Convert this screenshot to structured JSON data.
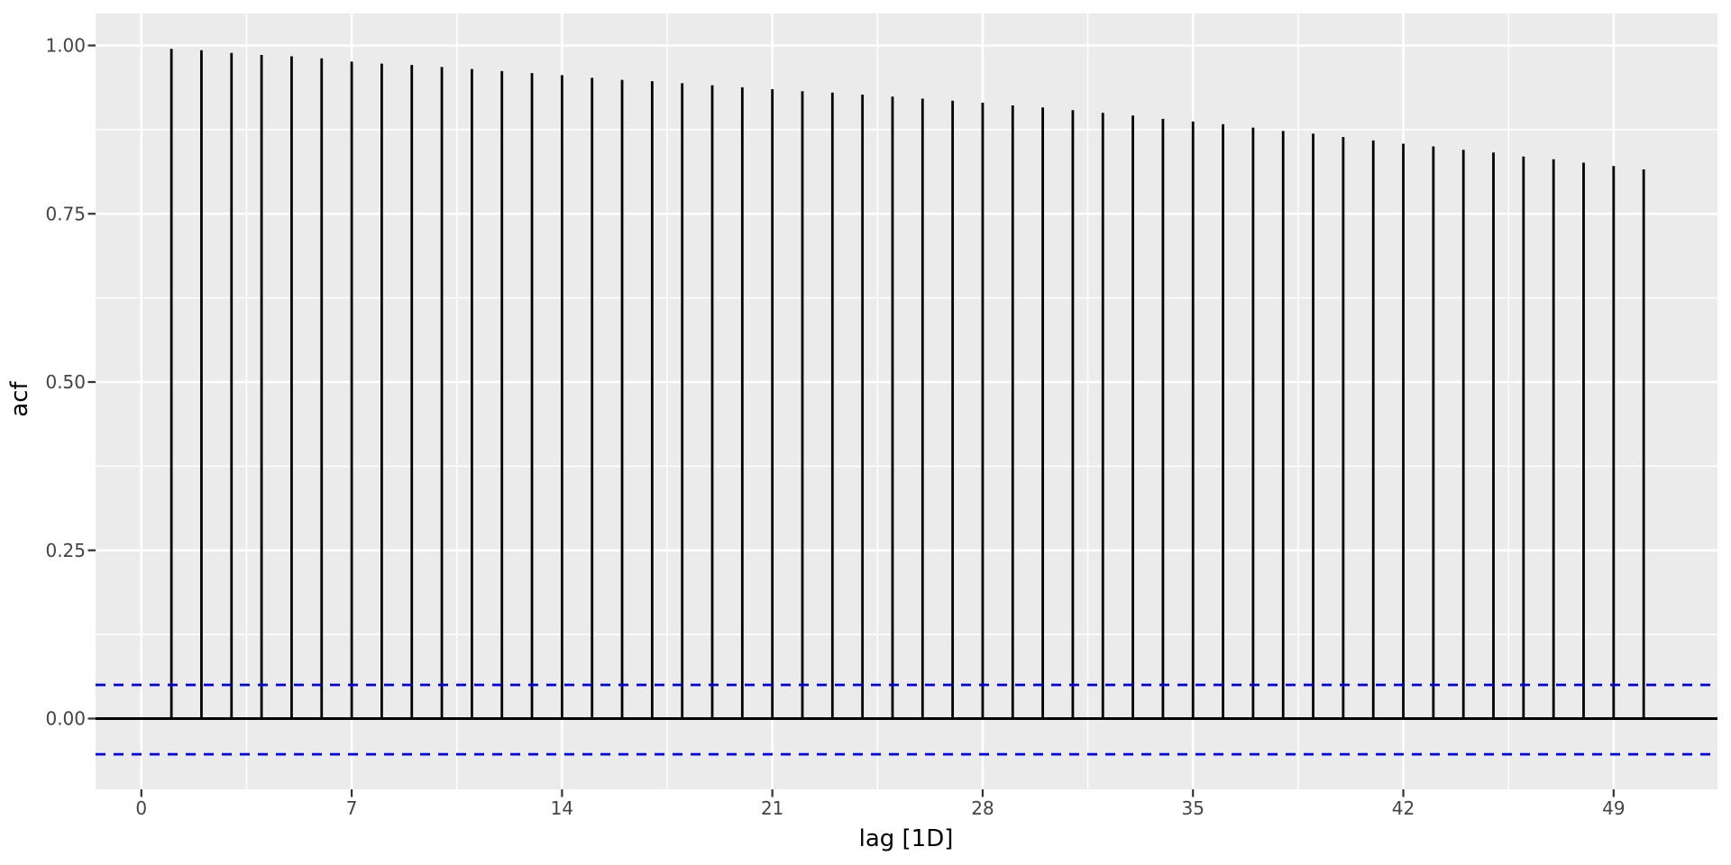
{
  "chart_data": {
    "type": "bar",
    "subtype": "acf-stem-plot",
    "title": "",
    "xlabel": "lag [1D]",
    "ylabel": "acf",
    "x": [
      1,
      2,
      3,
      4,
      5,
      6,
      7,
      8,
      9,
      10,
      11,
      12,
      13,
      14,
      15,
      16,
      17,
      18,
      19,
      20,
      21,
      22,
      23,
      24,
      25,
      26,
      27,
      28,
      29,
      30,
      31,
      32,
      33,
      34,
      35,
      36,
      37,
      38,
      39,
      40,
      41,
      42,
      43,
      44,
      45,
      46,
      47,
      48,
      49,
      50
    ],
    "values": [
      0.995,
      0.993,
      0.989,
      0.986,
      0.984,
      0.981,
      0.976,
      0.973,
      0.971,
      0.968,
      0.965,
      0.962,
      0.959,
      0.956,
      0.952,
      0.949,
      0.947,
      0.944,
      0.941,
      0.938,
      0.935,
      0.932,
      0.93,
      0.927,
      0.924,
      0.921,
      0.918,
      0.915,
      0.911,
      0.908,
      0.904,
      0.9,
      0.896,
      0.891,
      0.887,
      0.883,
      0.878,
      0.873,
      0.869,
      0.864,
      0.859,
      0.854,
      0.85,
      0.845,
      0.841,
      0.835,
      0.831,
      0.826,
      0.821,
      0.816
    ],
    "confidence_bounds": {
      "upper": 0.05,
      "lower": -0.053,
      "style": "dashed",
      "color": "#0000EE"
    },
    "zero_line": true,
    "x_ticks": {
      "values": [
        0,
        7,
        14,
        21,
        28,
        35,
        42,
        49
      ],
      "labels": [
        "0",
        "7",
        "14",
        "21",
        "28",
        "35",
        "42",
        "49"
      ]
    },
    "y_ticks": {
      "values": [
        0.0,
        0.25,
        0.5,
        0.75,
        1.0
      ],
      "labels": [
        "0.00",
        "0.25",
        "0.50",
        "0.75",
        "1.00"
      ]
    },
    "x_minor_ticks": [
      3.5,
      10.5,
      17.5,
      24.5,
      31.5,
      38.5,
      45.5
    ],
    "y_minor_ticks": [
      0.125,
      0.375,
      0.625,
      0.875
    ],
    "xlim": [
      -1.52,
      52.45
    ],
    "ylim": [
      -0.105,
      1.048
    ],
    "grid": {
      "major": true,
      "minor": true,
      "on": true
    },
    "legend": null,
    "colors": {
      "stem": "#000000",
      "zero_line": "#000000",
      "confidence": "#0000EE",
      "panel_background": "#EBEBEB",
      "gridline": "#FFFFFF",
      "tick_mark": "#333333",
      "tick_label": "#444444",
      "axis_title": "#000000",
      "figure_background": "#FFFFFF"
    }
  }
}
